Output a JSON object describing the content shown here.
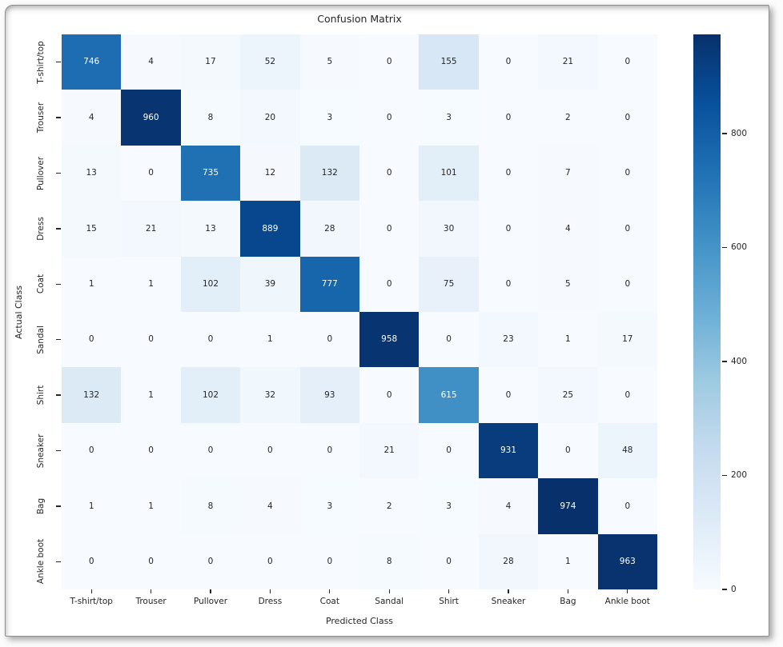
{
  "chart_data": {
    "type": "heatmap",
    "title": "Confusion Matrix",
    "xlabel": "Predicted Class",
    "ylabel": "Actual Class",
    "x_categories": [
      "T-shirt/top",
      "Trouser",
      "Pullover",
      "Dress",
      "Coat",
      "Sandal",
      "Shirt",
      "Sneaker",
      "Bag",
      "Ankle boot"
    ],
    "y_categories": [
      "T-shirt/top",
      "Trouser",
      "Pullover",
      "Dress",
      "Coat",
      "Sandal",
      "Shirt",
      "Sneaker",
      "Bag",
      "Ankle boot"
    ],
    "matrix": [
      [
        746,
        4,
        17,
        52,
        5,
        0,
        155,
        0,
        21,
        0
      ],
      [
        4,
        960,
        8,
        20,
        3,
        0,
        3,
        0,
        2,
        0
      ],
      [
        13,
        0,
        735,
        12,
        132,
        0,
        101,
        0,
        7,
        0
      ],
      [
        15,
        21,
        13,
        889,
        28,
        0,
        30,
        0,
        4,
        0
      ],
      [
        1,
        1,
        102,
        39,
        777,
        0,
        75,
        0,
        5,
        0
      ],
      [
        0,
        0,
        0,
        1,
        0,
        958,
        0,
        23,
        1,
        17
      ],
      [
        132,
        1,
        102,
        32,
        93,
        0,
        615,
        0,
        25,
        0
      ],
      [
        0,
        0,
        0,
        0,
        0,
        21,
        0,
        931,
        0,
        48
      ],
      [
        1,
        1,
        8,
        4,
        3,
        2,
        3,
        4,
        974,
        0
      ],
      [
        0,
        0,
        0,
        0,
        0,
        8,
        0,
        28,
        1,
        963
      ]
    ],
    "vmin": 0,
    "vmax": 974,
    "colormap": "Blues",
    "colormap_stops": [
      "#f7fbff",
      "#deebf7",
      "#c6dbef",
      "#9ecae1",
      "#6baed6",
      "#4292c6",
      "#2171b5",
      "#08519c",
      "#08306b"
    ],
    "colorbar_ticks": [
      0,
      200,
      400,
      600,
      800
    ],
    "annotation_color_dark": "#262626",
    "annotation_color_light": "#ffffff",
    "grid": false,
    "legend_position": "right-colorbar"
  }
}
